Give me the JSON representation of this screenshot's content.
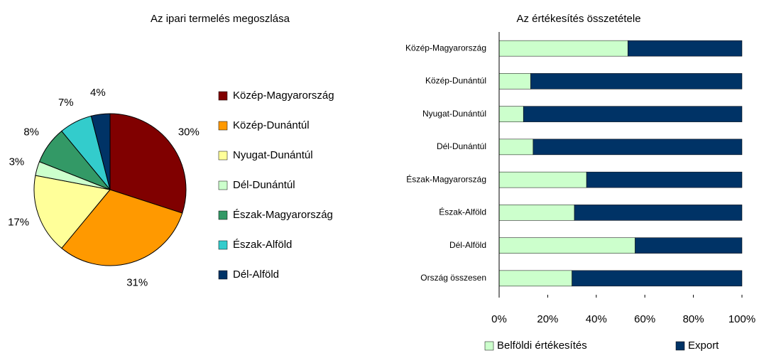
{
  "chart_data": [
    {
      "type": "pie",
      "title": "Az ipari termelés megoszlása",
      "categories": [
        "Közép-Magyarország",
        "Közép-Dunántúl",
        "Nyugat-Dunántúl",
        "Dél-Dunántúl",
        "Észak-Magyarország",
        "Észak-Alföld",
        "Dél-Alföld"
      ],
      "values": [
        30,
        31,
        17,
        3,
        8,
        7,
        4
      ],
      "value_labels": [
        "30%",
        "31%",
        "17%",
        "3%",
        "8%",
        "7%",
        "4%"
      ],
      "colors": [
        "#800000",
        "#ff9900",
        "#ffff99",
        "#ccffcc",
        "#339966",
        "#33cccc",
        "#003366"
      ],
      "legend": "right"
    },
    {
      "type": "stacked_bar_horizontal",
      "title": "Az értékesítés összetétele",
      "categories": [
        "Közép-Magyarország",
        "Közép-Dunántúl",
        "Nyugat-Dunántúl",
        "Dél-Dunántúl",
        "Észak-Magyarország",
        "Észak-Alföld",
        "Dél-Alföld",
        "Ország összesen"
      ],
      "series": [
        {
          "name": "Belföldi értékesítés",
          "color": "#ccffcc",
          "values": [
            53,
            13,
            10,
            14,
            36,
            31,
            56,
            30
          ]
        },
        {
          "name": "Export",
          "color": "#003366",
          "values": [
            47,
            87,
            90,
            86,
            64,
            69,
            44,
            70
          ]
        }
      ],
      "xlim": [
        0,
        100
      ],
      "xticks": [
        {
          "value": 0,
          "label": "0%"
        },
        {
          "value": 20,
          "label": "20%"
        },
        {
          "value": 40,
          "label": "40%"
        },
        {
          "value": 60,
          "label": "60%"
        },
        {
          "value": 80,
          "label": "80%"
        },
        {
          "value": 100,
          "label": "100%"
        }
      ],
      "legend": "bottom"
    }
  ]
}
